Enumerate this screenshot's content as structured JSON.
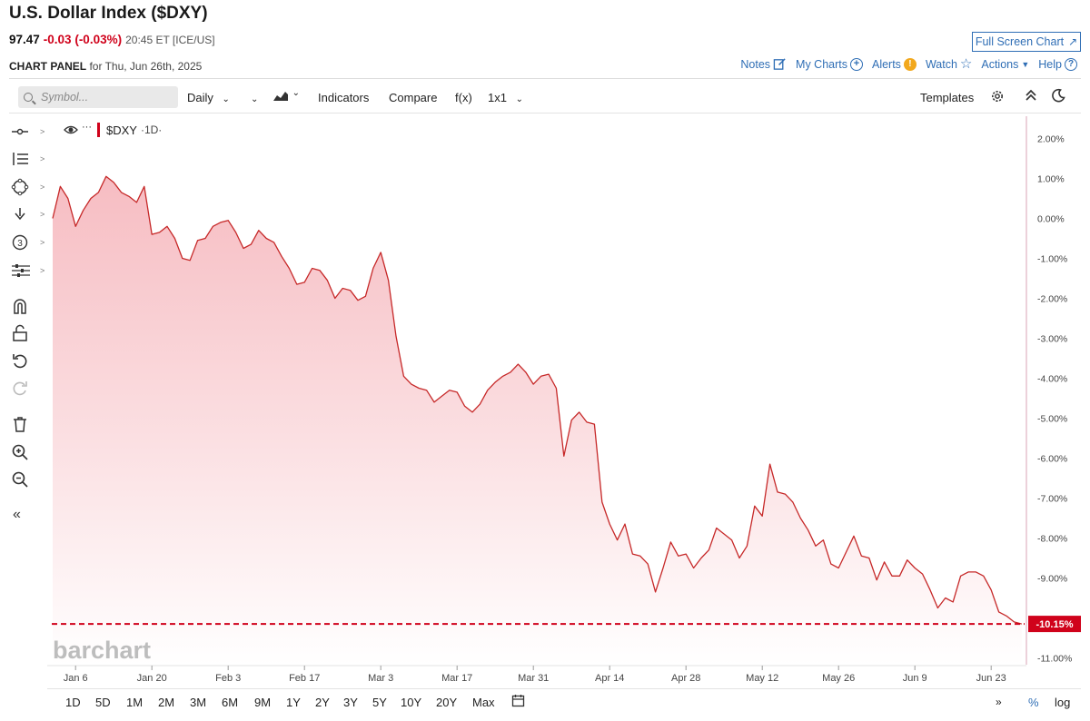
{
  "header": {
    "title": "U.S. Dollar Index ($DXY)",
    "last": "97.47",
    "change": "-0.03 (-0.03%)",
    "time": "20:45 ET [ICE/US]",
    "full_screen": "Full Screen Chart",
    "panel_label": "CHART PANEL",
    "panel_date": "for Thu, Jun 26th, 2025"
  },
  "toplinks": {
    "notes": "Notes",
    "my_charts": "My Charts",
    "alerts": "Alerts",
    "alerts_badge": "!",
    "watch": "Watch",
    "actions": "Actions",
    "help": "Help"
  },
  "toolbar": {
    "symbol_placeholder": "Symbol...",
    "interval": "Daily",
    "indicators": "Indicators",
    "compare": "Compare",
    "fx": "f(x)",
    "layout": "1x1",
    "templates": "Templates"
  },
  "legend": {
    "symbol": "$DXY",
    "period": "·1D·"
  },
  "watermark": "barchart",
  "bottom": {
    "ranges": [
      "1D",
      "5D",
      "1M",
      "2M",
      "3M",
      "6M",
      "9M",
      "1Y",
      "2Y",
      "3Y",
      "5Y",
      "10Y",
      "20Y",
      "Max"
    ],
    "percent": "%",
    "log": "log"
  },
  "colors": {
    "line": "#c62828",
    "fill_top": "#f6b9bf",
    "last_label_bg": "#d0021b",
    "accent": "#2f6eb5"
  },
  "chart_data": {
    "type": "area",
    "y_unit": "percent change",
    "ylim": [
      -11.3,
      2.4
    ],
    "y_ticks": [
      2,
      1,
      0,
      -1,
      -2,
      -3,
      -4,
      -5,
      -6,
      -7,
      -8,
      -9,
      -11
    ],
    "y_tick_labels": [
      "2.00%",
      "1.00%",
      "0.00%",
      "-1.00%",
      "-2.00%",
      "-3.00%",
      "-4.00%",
      "-5.00%",
      "-6.00%",
      "-7.00%",
      "-8.00%",
      "-9.00%",
      "-11.00%"
    ],
    "x_tick_labels": [
      "Jan 6",
      "Jan 20",
      "Feb 3",
      "Feb 17",
      "Mar 3",
      "Mar 17",
      "Mar 31",
      "Apr 14",
      "Apr 28",
      "May 12",
      "May 26",
      "Jun 9",
      "Jun 23"
    ],
    "x_tick_index": [
      3,
      13,
      23,
      33,
      43,
      53,
      63,
      73,
      83,
      93,
      103,
      113,
      123
    ],
    "last_value": -10.15,
    "last_label": "-10.15%",
    "x_count": 128,
    "values": [
      0,
      0.8,
      0.5,
      -0.2,
      0.2,
      0.5,
      0.65,
      1.05,
      0.9,
      0.65,
      0.55,
      0.4,
      0.8,
      -0.4,
      -0.35,
      -0.2,
      -0.5,
      -1.0,
      -1.05,
      -0.55,
      -0.5,
      -0.2,
      -0.1,
      -0.05,
      -0.35,
      -0.75,
      -0.65,
      -0.3,
      -0.5,
      -0.6,
      -0.95,
      -1.25,
      -1.65,
      -1.6,
      -1.25,
      -1.3,
      -1.55,
      -2.0,
      -1.75,
      -1.8,
      -2.05,
      -1.95,
      -1.25,
      -0.85,
      -1.55,
      -2.95,
      -3.95,
      -4.15,
      -4.25,
      -4.3,
      -4.6,
      -4.45,
      -4.3,
      -4.35,
      -4.7,
      -4.85,
      -4.65,
      -4.3,
      -4.1,
      -3.95,
      -3.85,
      -3.65,
      -3.85,
      -4.15,
      -3.95,
      -3.9,
      -4.25,
      -5.95,
      -5.05,
      -4.85,
      -5.1,
      -5.15,
      -7.1,
      -7.65,
      -8.05,
      -7.65,
      -8.4,
      -8.45,
      -8.65,
      -9.35,
      -8.75,
      -8.1,
      -8.45,
      -8.4,
      -8.75,
      -8.5,
      -8.3,
      -7.75,
      -7.9,
      -8.05,
      -8.5,
      -8.2,
      -7.2,
      -7.45,
      -6.15,
      -6.85,
      -6.9,
      -7.1,
      -7.5,
      -7.8,
      -8.2,
      -8.05,
      -8.65,
      -8.75,
      -8.35,
      -7.95,
      -8.45,
      -8.5,
      -9.05,
      -8.6,
      -8.95,
      -8.95,
      -8.55,
      -8.75,
      -8.9,
      -9.3,
      -9.75,
      -9.5,
      -9.6,
      -8.95,
      -8.85,
      -8.85,
      -8.95,
      -9.3,
      -9.85,
      -9.95,
      -10.1,
      -10.15
    ]
  }
}
